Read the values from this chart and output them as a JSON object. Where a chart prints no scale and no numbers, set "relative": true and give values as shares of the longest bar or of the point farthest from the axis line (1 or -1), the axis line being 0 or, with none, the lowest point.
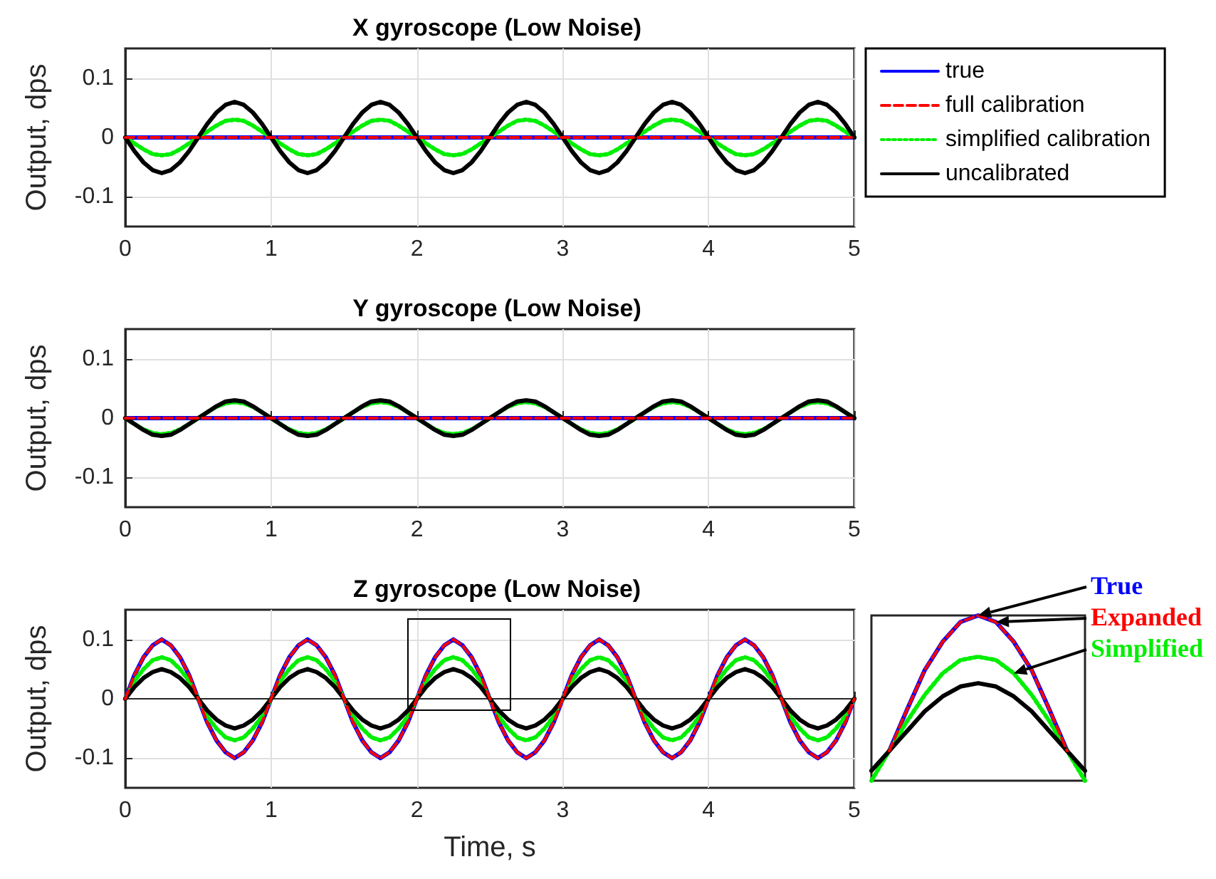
{
  "chart_data": [
    {
      "type": "line",
      "title": "X gyroscope (Low Noise)",
      "ylabel": "Output, dps",
      "xlim": [
        0,
        5
      ],
      "xticks": [
        0,
        1,
        2,
        3,
        4,
        5
      ],
      "ylim": [
        -0.15,
        0.15
      ],
      "yticks": [
        -0.1,
        0,
        0.1
      ],
      "grid": true,
      "legend": "right",
      "marker": "none",
      "series": [
        {
          "name": "true",
          "color": "#0000ff",
          "line_style": "solid",
          "values": [
            0,
            0,
            0,
            0,
            0,
            0,
            0,
            0,
            0,
            0,
            0,
            0,
            0,
            0,
            0,
            0,
            0,
            0,
            0,
            0,
            0,
            0,
            0,
            0,
            0,
            0,
            0,
            0,
            0,
            0,
            0,
            0,
            0,
            0,
            0,
            0,
            0,
            0,
            0,
            0,
            0,
            0,
            0,
            0,
            0,
            0,
            0,
            0,
            0,
            0,
            0,
            0,
            0,
            0,
            0,
            0,
            0,
            0,
            0,
            0,
            0,
            0,
            0,
            0,
            0,
            0,
            0,
            0,
            0,
            0,
            0,
            0,
            0,
            0,
            0,
            0,
            0,
            0,
            0,
            0,
            0
          ]
        },
        {
          "name": "full calibration",
          "color": "#ff0000",
          "line_style": "dashed",
          "values": [
            0,
            0,
            0,
            0,
            0,
            0,
            0,
            0,
            0,
            0,
            0,
            0,
            0,
            0,
            0,
            0,
            0,
            0,
            0,
            0,
            0,
            0,
            0,
            0,
            0,
            0,
            0,
            0,
            0,
            0,
            0,
            0,
            0,
            0,
            0,
            0,
            0,
            0,
            0,
            0,
            0,
            0,
            0,
            0,
            0,
            0,
            0,
            0,
            0,
            0,
            0,
            0,
            0,
            0,
            0,
            0,
            0,
            0,
            0,
            0,
            0,
            0,
            0,
            0,
            0,
            0,
            0,
            0,
            0,
            0,
            0,
            0,
            0,
            0,
            0,
            0,
            0,
            0,
            0,
            0,
            0
          ]
        },
        {
          "name": "simplified calibration",
          "color": "#00ee00",
          "line_style": "dotted",
          "values": [
            0,
            -0.01,
            -0.02,
            -0.028,
            -0.03,
            -0.028,
            -0.02,
            -0.01,
            0,
            0.01,
            0.02,
            0.028,
            0.03,
            0.028,
            0.02,
            0.01,
            0,
            -0.01,
            -0.02,
            -0.028,
            -0.03,
            -0.028,
            -0.02,
            -0.01,
            0,
            0.01,
            0.02,
            0.028,
            0.03,
            0.028,
            0.02,
            0.01,
            0,
            -0.01,
            -0.02,
            -0.028,
            -0.03,
            -0.028,
            -0.02,
            -0.01,
            0,
            0.01,
            0.02,
            0.028,
            0.03,
            0.028,
            0.02,
            0.01,
            0,
            -0.01,
            -0.02,
            -0.028,
            -0.03,
            -0.028,
            -0.02,
            -0.01,
            0,
            0.01,
            0.02,
            0.028,
            0.03,
            0.028,
            0.02,
            0.01,
            0,
            -0.01,
            -0.02,
            -0.028,
            -0.03,
            -0.028,
            -0.02,
            -0.01,
            0,
            0.01,
            0.02,
            0.028,
            0.03,
            0.028,
            0.02,
            0.01,
            0
          ]
        },
        {
          "name": "uncalibrated",
          "color": "#000000",
          "line_style": "solid",
          "values": [
            0,
            -0.023,
            -0.042,
            -0.055,
            -0.06,
            -0.055,
            -0.042,
            -0.023,
            0,
            0.023,
            0.042,
            0.055,
            0.06,
            0.055,
            0.042,
            0.023,
            0,
            -0.023,
            -0.042,
            -0.055,
            -0.06,
            -0.055,
            -0.042,
            -0.023,
            0,
            0.023,
            0.042,
            0.055,
            0.06,
            0.055,
            0.042,
            0.023,
            0,
            -0.023,
            -0.042,
            -0.055,
            -0.06,
            -0.055,
            -0.042,
            -0.023,
            0,
            0.023,
            0.042,
            0.055,
            0.06,
            0.055,
            0.042,
            0.023,
            0,
            -0.023,
            -0.042,
            -0.055,
            -0.06,
            -0.055,
            -0.042,
            -0.023,
            0,
            0.023,
            0.042,
            0.055,
            0.06,
            0.055,
            0.042,
            0.023,
            0,
            -0.023,
            -0.042,
            -0.055,
            -0.06,
            -0.055,
            -0.042,
            -0.023,
            0,
            0.023,
            0.042,
            0.055,
            0.06,
            0.055,
            0.042,
            0.023,
            0
          ]
        }
      ],
      "x": [
        0,
        0.0625,
        0.125,
        0.1875,
        0.25,
        0.3125,
        0.375,
        0.4375,
        0.5,
        0.5625,
        0.625,
        0.6875,
        0.75,
        0.8125,
        0.875,
        0.9375,
        1,
        1.0625,
        1.125,
        1.1875,
        1.25,
        1.3125,
        1.375,
        1.4375,
        1.5,
        1.5625,
        1.625,
        1.6875,
        1.75,
        1.8125,
        1.875,
        1.9375,
        2,
        2.0625,
        2.125,
        2.1875,
        2.25,
        2.3125,
        2.375,
        2.4375,
        2.5,
        2.5625,
        2.625,
        2.6875,
        2.75,
        2.8125,
        2.875,
        2.9375,
        3,
        3.0625,
        3.125,
        3.1875,
        3.25,
        3.3125,
        3.375,
        3.4375,
        3.5,
        3.5625,
        3.625,
        3.6875,
        3.75,
        3.8125,
        3.875,
        3.9375,
        4,
        4.0625,
        4.125,
        4.1875,
        4.25,
        4.3125,
        4.375,
        4.4375,
        4.5,
        4.5625,
        4.625,
        4.6875,
        4.75,
        4.8125,
        4.875,
        4.9375,
        5
      ]
    },
    {
      "type": "line",
      "title": "Y gyroscope (Low Noise)",
      "ylabel": "Output, dps",
      "xlim": [
        0,
        5
      ],
      "xticks": [
        0,
        1,
        2,
        3,
        4,
        5
      ],
      "ylim": [
        -0.15,
        0.15
      ],
      "yticks": [
        -0.1,
        0,
        0.1
      ],
      "grid": true,
      "marker": "none",
      "series": [
        {
          "color": "#0000ff",
          "line_style": "solid",
          "values": [
            0,
            0,
            0,
            0,
            0,
            0,
            0,
            0,
            0,
            0,
            0,
            0,
            0,
            0,
            0,
            0,
            0,
            0,
            0,
            0,
            0,
            0,
            0,
            0,
            0,
            0,
            0,
            0,
            0,
            0,
            0,
            0,
            0,
            0,
            0,
            0,
            0,
            0,
            0,
            0,
            0,
            0,
            0,
            0,
            0,
            0,
            0,
            0,
            0,
            0,
            0,
            0,
            0,
            0,
            0,
            0,
            0,
            0,
            0,
            0,
            0,
            0,
            0,
            0,
            0,
            0,
            0,
            0,
            0,
            0,
            0,
            0,
            0,
            0,
            0,
            0,
            0,
            0,
            0,
            0,
            0
          ]
        },
        {
          "color": "#ff0000",
          "line_style": "dashed",
          "values": [
            0,
            0,
            0,
            0,
            0,
            0,
            0,
            0,
            0,
            0,
            0,
            0,
            0,
            0,
            0,
            0,
            0,
            0,
            0,
            0,
            0,
            0,
            0,
            0,
            0,
            0,
            0,
            0,
            0,
            0,
            0,
            0,
            0,
            0,
            0,
            0,
            0,
            0,
            0,
            0,
            0,
            0,
            0,
            0,
            0,
            0,
            0,
            0,
            0,
            0,
            0,
            0,
            0,
            0,
            0,
            0,
            0,
            0,
            0,
            0,
            0,
            0,
            0,
            0,
            0,
            0,
            0,
            0,
            0,
            0,
            0,
            0,
            0,
            0,
            0,
            0,
            0,
            0,
            0,
            0,
            0
          ]
        },
        {
          "color": "#00ee00",
          "line_style": "dotted",
          "values": [
            0,
            -0.01,
            -0.019,
            -0.025,
            -0.027,
            -0.025,
            -0.019,
            -0.01,
            0,
            0.01,
            0.019,
            0.025,
            0.027,
            0.025,
            0.019,
            0.01,
            0,
            -0.01,
            -0.019,
            -0.025,
            -0.027,
            -0.025,
            -0.019,
            -0.01,
            0,
            0.01,
            0.019,
            0.025,
            0.027,
            0.025,
            0.019,
            0.01,
            0,
            -0.01,
            -0.019,
            -0.025,
            -0.027,
            -0.025,
            -0.019,
            -0.01,
            0,
            0.01,
            0.019,
            0.025,
            0.027,
            0.025,
            0.019,
            0.01,
            0,
            -0.01,
            -0.019,
            -0.025,
            -0.027,
            -0.025,
            -0.019,
            -0.01,
            0,
            0.01,
            0.019,
            0.025,
            0.027,
            0.025,
            0.019,
            0.01,
            0,
            -0.01,
            -0.019,
            -0.025,
            -0.027,
            -0.025,
            -0.019,
            -0.01,
            0,
            0.01,
            0.019,
            0.025,
            0.027,
            0.025,
            0.019,
            0.01,
            0
          ]
        },
        {
          "color": "#000000",
          "line_style": "solid",
          "values": [
            0,
            -0.01,
            -0.02,
            -0.028,
            -0.03,
            -0.028,
            -0.02,
            -0.01,
            0,
            0.01,
            0.02,
            0.028,
            0.03,
            0.028,
            0.02,
            0.01,
            0,
            -0.01,
            -0.02,
            -0.028,
            -0.03,
            -0.028,
            -0.02,
            -0.01,
            0,
            0.01,
            0.02,
            0.028,
            0.03,
            0.028,
            0.02,
            0.01,
            0,
            -0.01,
            -0.02,
            -0.028,
            -0.03,
            -0.028,
            -0.02,
            -0.01,
            0,
            0.01,
            0.02,
            0.028,
            0.03,
            0.028,
            0.02,
            0.01,
            0,
            -0.01,
            -0.02,
            -0.028,
            -0.03,
            -0.028,
            -0.02,
            -0.01,
            0,
            0.01,
            0.02,
            0.028,
            0.03,
            0.028,
            0.02,
            0.01,
            0,
            -0.01,
            -0.02,
            -0.028,
            -0.03,
            -0.028,
            -0.02,
            -0.01,
            0,
            0.01,
            0.02,
            0.028,
            0.03,
            0.028,
            0.02,
            0.01,
            0
          ]
        }
      ],
      "x": [
        0,
        0.0625,
        0.125,
        0.1875,
        0.25,
        0.3125,
        0.375,
        0.4375,
        0.5,
        0.5625,
        0.625,
        0.6875,
        0.75,
        0.8125,
        0.875,
        0.9375,
        1,
        1.0625,
        1.125,
        1.1875,
        1.25,
        1.3125,
        1.375,
        1.4375,
        1.5,
        1.5625,
        1.625,
        1.6875,
        1.75,
        1.8125,
        1.875,
        1.9375,
        2,
        2.0625,
        2.125,
        2.1875,
        2.25,
        2.3125,
        2.375,
        2.4375,
        2.5,
        2.5625,
        2.625,
        2.6875,
        2.75,
        2.8125,
        2.875,
        2.9375,
        3,
        3.0625,
        3.125,
        3.1875,
        3.25,
        3.3125,
        3.375,
        3.4375,
        3.5,
        3.5625,
        3.625,
        3.6875,
        3.75,
        3.8125,
        3.875,
        3.9375,
        4,
        4.0625,
        4.125,
        4.1875,
        4.25,
        4.3125,
        4.375,
        4.4375,
        4.5,
        4.5625,
        4.625,
        4.6875,
        4.75,
        4.8125,
        4.875,
        4.9375,
        5
      ]
    },
    {
      "type": "line",
      "title": "Z gyroscope (Low Noise)",
      "ylabel": "Output, dps",
      "xlabel": "Time, s",
      "xlim": [
        0,
        5
      ],
      "xticks": [
        0,
        1,
        2,
        3,
        4,
        5
      ],
      "ylim": [
        -0.15,
        0.15
      ],
      "yticks": [
        -0.1,
        0,
        0.1
      ],
      "grid": true,
      "marker": "none",
      "series": [
        {
          "color": "#0000ff",
          "line_style": "solid",
          "values": [
            0,
            0.04,
            0.07,
            0.09,
            0.1,
            0.09,
            0.07,
            0.04,
            0,
            -0.04,
            -0.07,
            -0.09,
            -0.1,
            -0.09,
            -0.07,
            -0.04,
            0,
            0.04,
            0.07,
            0.09,
            0.1,
            0.09,
            0.07,
            0.04,
            0,
            -0.04,
            -0.07,
            -0.09,
            -0.1,
            -0.09,
            -0.07,
            -0.04,
            0,
            0.04,
            0.07,
            0.09,
            0.1,
            0.09,
            0.07,
            0.04,
            0,
            -0.04,
            -0.07,
            -0.09,
            -0.1,
            -0.09,
            -0.07,
            -0.04,
            0,
            0.04,
            0.07,
            0.09,
            0.1,
            0.09,
            0.07,
            0.04,
            0,
            -0.04,
            -0.07,
            -0.09,
            -0.1,
            -0.09,
            -0.07,
            -0.04,
            0,
            0.04,
            0.07,
            0.09,
            0.1,
            0.09,
            0.07,
            0.04,
            0,
            -0.04,
            -0.07,
            -0.09,
            -0.1,
            -0.09,
            -0.07,
            -0.04,
            0
          ]
        },
        {
          "color": "#ff0000",
          "line_style": "dashed",
          "values": [
            0,
            0.04,
            0.07,
            0.09,
            0.1,
            0.09,
            0.07,
            0.04,
            0,
            -0.04,
            -0.07,
            -0.09,
            -0.1,
            -0.09,
            -0.07,
            -0.04,
            0,
            0.04,
            0.07,
            0.09,
            0.1,
            0.09,
            0.07,
            0.04,
            0,
            -0.04,
            -0.07,
            -0.09,
            -0.1,
            -0.09,
            -0.07,
            -0.04,
            0,
            0.04,
            0.07,
            0.09,
            0.1,
            0.09,
            0.07,
            0.04,
            0,
            -0.04,
            -0.07,
            -0.09,
            -0.1,
            -0.09,
            -0.07,
            -0.04,
            0,
            0.04,
            0.07,
            0.09,
            0.1,
            0.09,
            0.07,
            0.04,
            0,
            -0.04,
            -0.07,
            -0.09,
            -0.1,
            -0.09,
            -0.07,
            -0.04,
            0,
            0.04,
            0.07,
            0.09,
            0.1,
            0.09,
            0.07,
            0.04,
            0,
            -0.04,
            -0.07,
            -0.09,
            -0.1,
            -0.09,
            -0.07,
            -0.04,
            0
          ]
        },
        {
          "color": "#00ee00",
          "line_style": "dotted",
          "values": [
            0,
            0.03,
            0.05,
            0.065,
            0.07,
            0.065,
            0.05,
            0.03,
            0,
            -0.03,
            -0.05,
            -0.065,
            -0.07,
            -0.065,
            -0.05,
            -0.03,
            0,
            0.03,
            0.05,
            0.065,
            0.07,
            0.065,
            0.05,
            0.03,
            0,
            -0.03,
            -0.05,
            -0.065,
            -0.07,
            -0.065,
            -0.05,
            -0.03,
            0,
            0.03,
            0.05,
            0.065,
            0.07,
            0.065,
            0.05,
            0.03,
            0,
            -0.03,
            -0.05,
            -0.065,
            -0.07,
            -0.065,
            -0.05,
            -0.03,
            0,
            0.03,
            0.05,
            0.065,
            0.07,
            0.065,
            0.05,
            0.03,
            0,
            -0.03,
            -0.05,
            -0.065,
            -0.07,
            -0.065,
            -0.05,
            -0.03,
            0,
            0.03,
            0.05,
            0.065,
            0.07,
            0.065,
            0.05,
            0.03,
            0,
            -0.03,
            -0.05,
            -0.065,
            -0.07,
            -0.065,
            -0.05,
            -0.03,
            0
          ]
        },
        {
          "color": "#000000",
          "line_style": "solid",
          "values": [
            0,
            0.02,
            0.035,
            0.045,
            0.05,
            0.045,
            0.035,
            0.02,
            0,
            -0.02,
            -0.035,
            -0.045,
            -0.05,
            -0.045,
            -0.035,
            -0.02,
            0,
            0.02,
            0.035,
            0.045,
            0.05,
            0.045,
            0.035,
            0.02,
            0,
            -0.02,
            -0.035,
            -0.045,
            -0.05,
            -0.045,
            -0.035,
            -0.02,
            0,
            0.02,
            0.035,
            0.045,
            0.05,
            0.045,
            0.035,
            0.02,
            0,
            -0.02,
            -0.035,
            -0.045,
            -0.05,
            -0.045,
            -0.035,
            -0.02,
            0,
            0.02,
            0.035,
            0.045,
            0.05,
            0.045,
            0.035,
            0.02,
            0,
            -0.02,
            -0.035,
            -0.045,
            -0.05,
            -0.045,
            -0.035,
            -0.02,
            0,
            0.02,
            0.035,
            0.045,
            0.05,
            0.045,
            0.035,
            0.02,
            0,
            -0.02,
            -0.035,
            -0.045,
            -0.05,
            -0.045,
            -0.035,
            -0.02,
            0
          ]
        }
      ],
      "x": [
        0,
        0.0625,
        0.125,
        0.1875,
        0.25,
        0.3125,
        0.375,
        0.4375,
        0.5,
        0.5625,
        0.625,
        0.6875,
        0.75,
        0.8125,
        0.875,
        0.9375,
        1,
        1.0625,
        1.125,
        1.1875,
        1.25,
        1.3125,
        1.375,
        1.4375,
        1.5,
        1.5625,
        1.625,
        1.6875,
        1.75,
        1.8125,
        1.875,
        1.9375,
        2,
        2.0625,
        2.125,
        2.1875,
        2.25,
        2.3125,
        2.375,
        2.4375,
        2.5,
        2.5625,
        2.625,
        2.6875,
        2.75,
        2.8125,
        2.875,
        2.9375,
        3,
        3.0625,
        3.125,
        3.1875,
        3.25,
        3.3125,
        3.375,
        3.4375,
        3.5,
        3.5625,
        3.625,
        3.6875,
        3.75,
        3.8125,
        3.875,
        3.9375,
        4,
        4.0625,
        4.125,
        4.1875,
        4.25,
        4.3125,
        4.375,
        4.4375,
        4.5,
        4.5625,
        4.625,
        4.6875,
        4.75,
        4.8125,
        4.875,
        4.9375,
        5
      ]
    },
    {
      "type": "line",
      "relative": true,
      "marker": "none",
      "categories": [
        null,
        null,
        null,
        null,
        null,
        null,
        null,
        null,
        null,
        null,
        null,
        null,
        null
      ],
      "annotations": [
        "True",
        "Expanded",
        "Simplified"
      ],
      "series": [
        {
          "color": "#0000ff",
          "line_style": "solid",
          "values": [
            null,
            0.18,
            0.43,
            0.67,
            0.84,
            0.96,
            1,
            0.96,
            0.84,
            0.67,
            0.43,
            0.18,
            null
          ]
        },
        {
          "color": "#ff0000",
          "line_style": "dashed",
          "values": [
            null,
            0.18,
            0.43,
            0.67,
            0.84,
            0.96,
            1,
            0.96,
            0.84,
            0.67,
            0.43,
            0.18,
            null
          ]
        },
        {
          "color": "#00ee00",
          "line_style": "dotted",
          "values": [
            0,
            0.18,
            0.36,
            0.52,
            0.65,
            0.73,
            0.75,
            0.73,
            0.65,
            0.52,
            0.36,
            0.18,
            0
          ]
        },
        {
          "color": "#000000",
          "line_style": "solid",
          "values": [
            0.06,
            0.18,
            0.3,
            0.42,
            0.51,
            0.57,
            0.59,
            0.57,
            0.51,
            0.42,
            0.3,
            0.18,
            0.06
          ]
        }
      ]
    }
  ]
}
